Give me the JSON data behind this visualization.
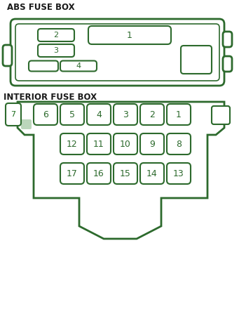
{
  "title_abs": "ABS FUSE BOX",
  "title_interior": "INTERIOR FUSE BOX",
  "bg_color": "#ffffff",
  "outline_color": "#2d6a2d",
  "text_color": "#1a1a1a",
  "label_color": "#1a6b1a",
  "fig_width": 3.41,
  "fig_height": 4.4,
  "dpi": 100
}
